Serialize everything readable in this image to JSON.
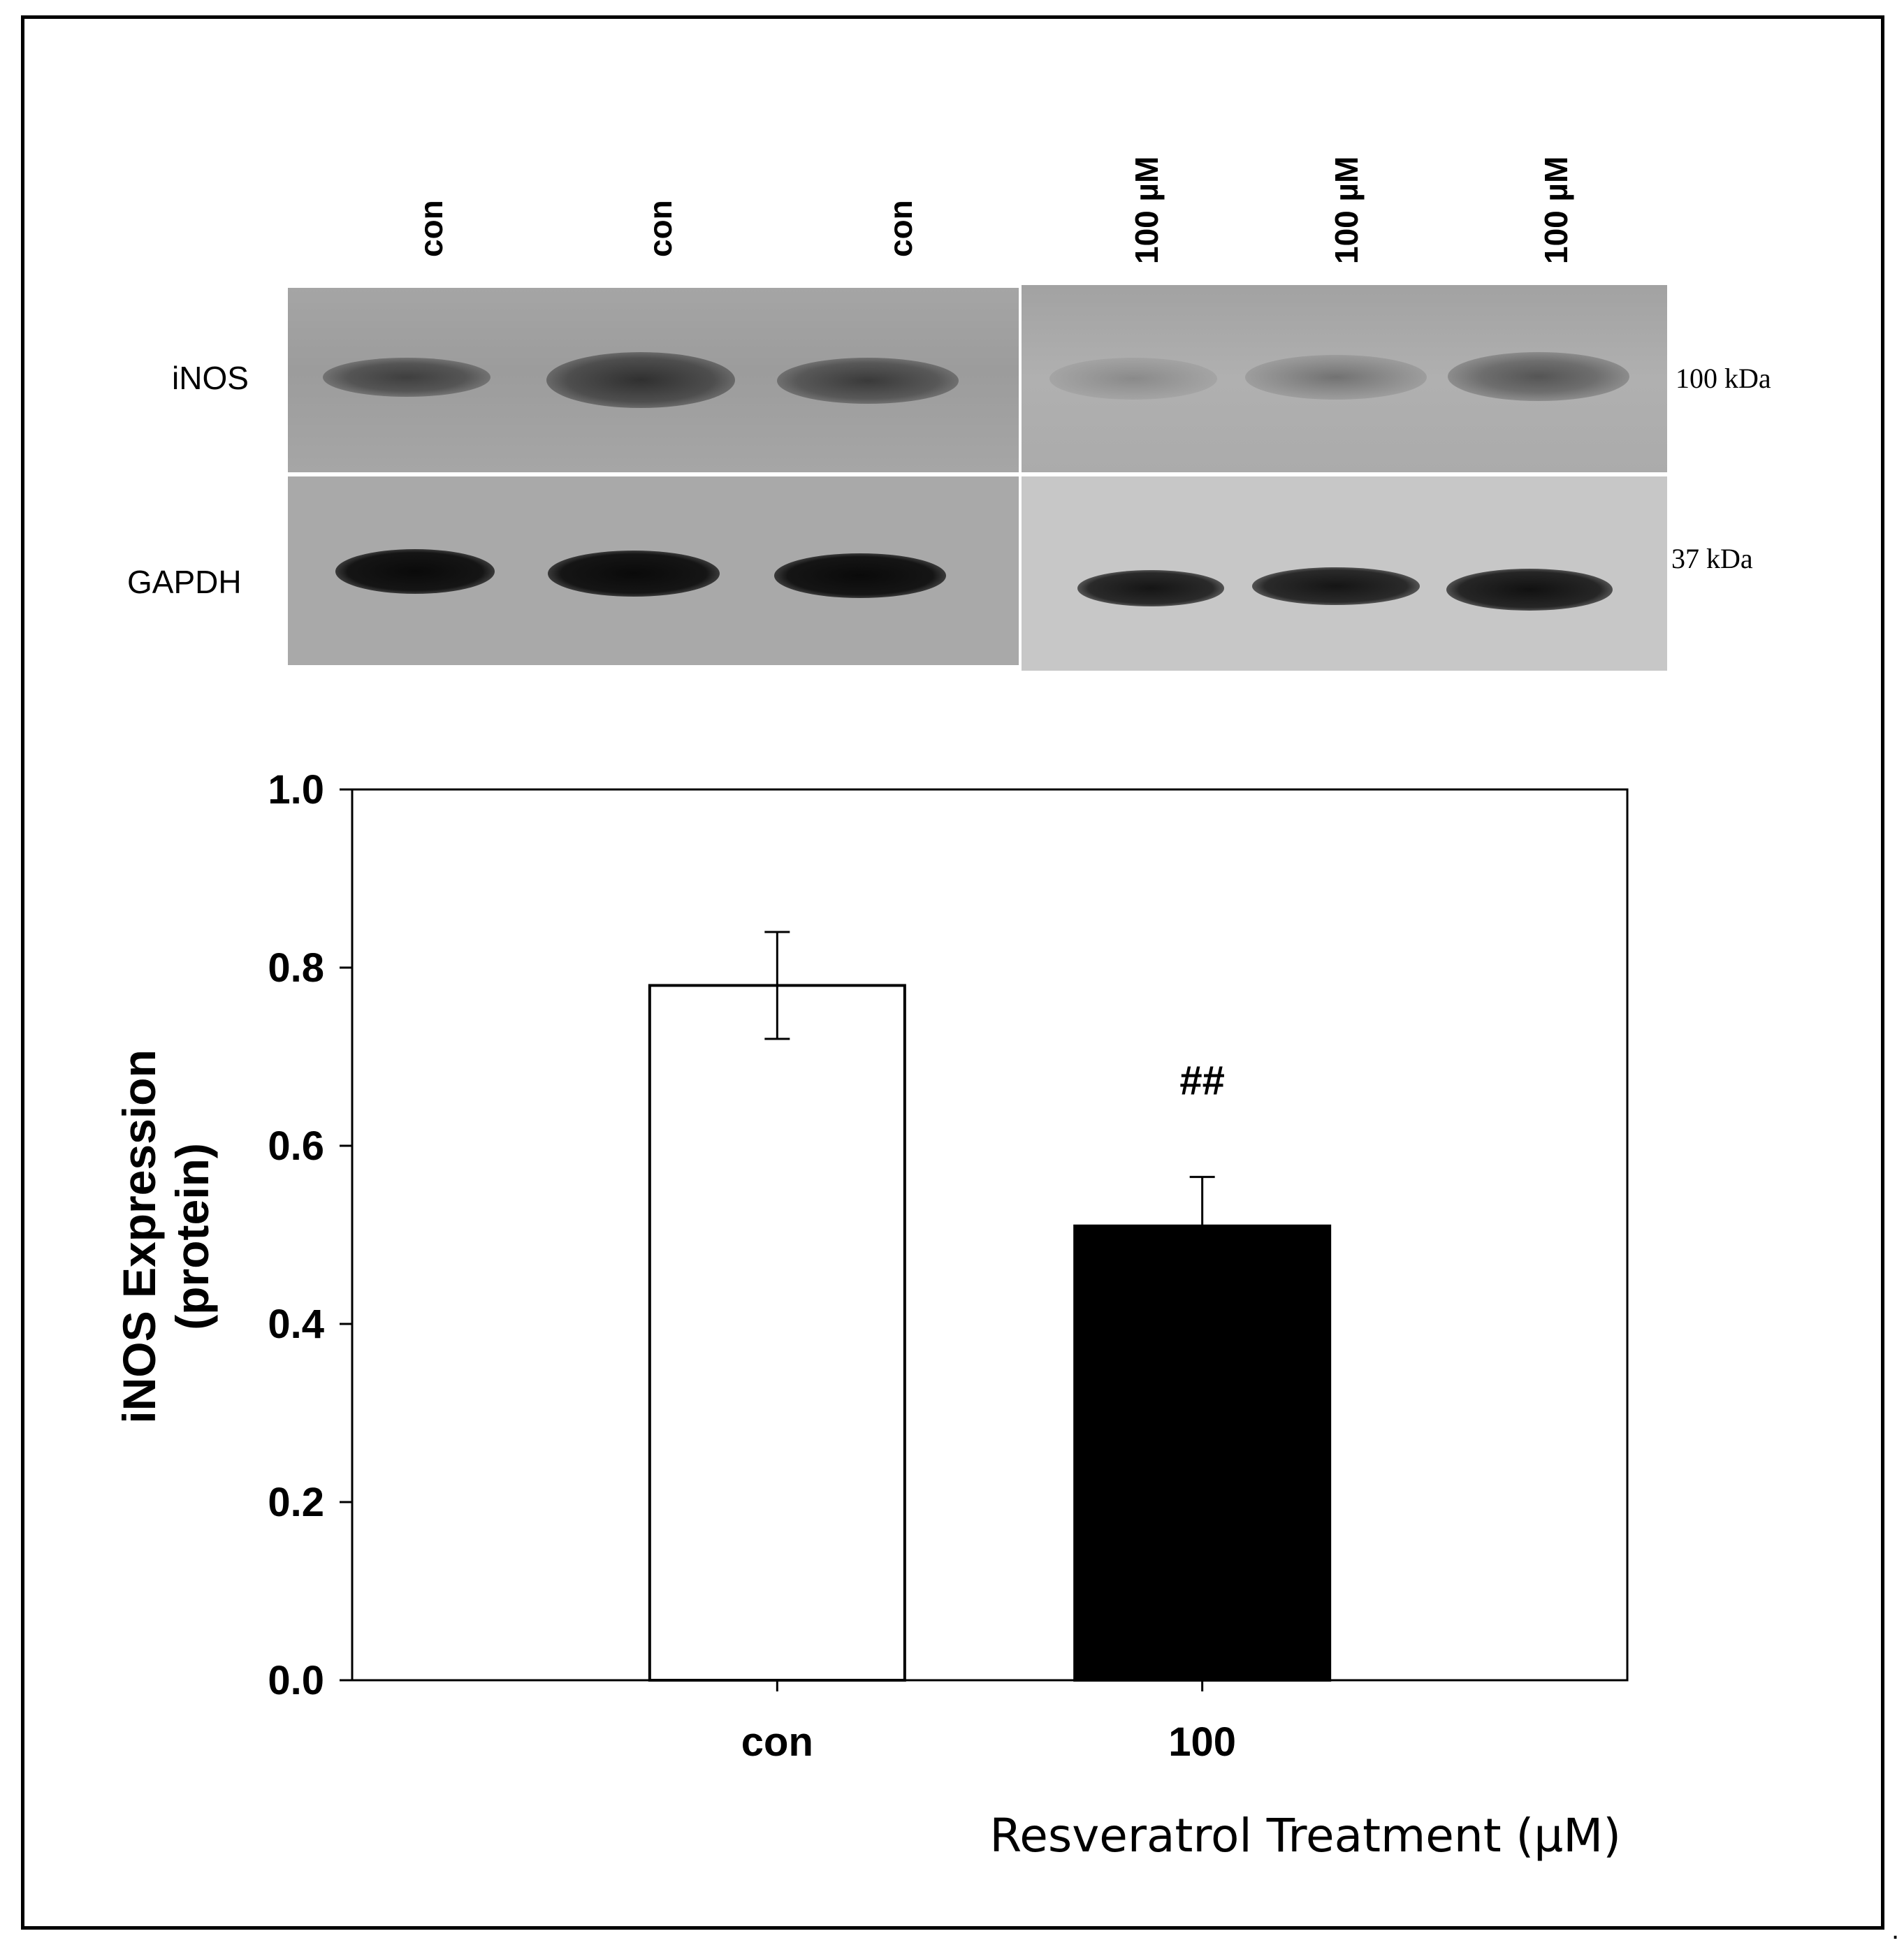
{
  "blot": {
    "lanes": [
      "con",
      "con",
      "con",
      "100 µM",
      "100 µM",
      "100 µM"
    ],
    "rows": [
      {
        "label": "iNOS",
        "marker": "100 kDa"
      },
      {
        "label": "GAPDH",
        "marker": "37 kDa"
      }
    ]
  },
  "chart_data": {
    "type": "bar",
    "categories": [
      "con",
      "100"
    ],
    "values": [
      0.78,
      0.51
    ],
    "errors": [
      0.06,
      0.055
    ],
    "fill_colors": [
      "#ffffff",
      "#000000"
    ],
    "annotations": [
      {
        "category": "100",
        "text": "##"
      }
    ],
    "title": "",
    "xlabel": "Resveratrol Treatment (µM)",
    "ylabel_lines": [
      "iNOS Expression",
      "(protein)"
    ],
    "ylim": [
      0,
      1.0
    ],
    "yticks": [
      "0.0",
      "0.2",
      "0.4",
      "0.6",
      "0.8",
      "1.0"
    ],
    "grid": false
  },
  "footer": {
    "trailing_mark": "."
  }
}
